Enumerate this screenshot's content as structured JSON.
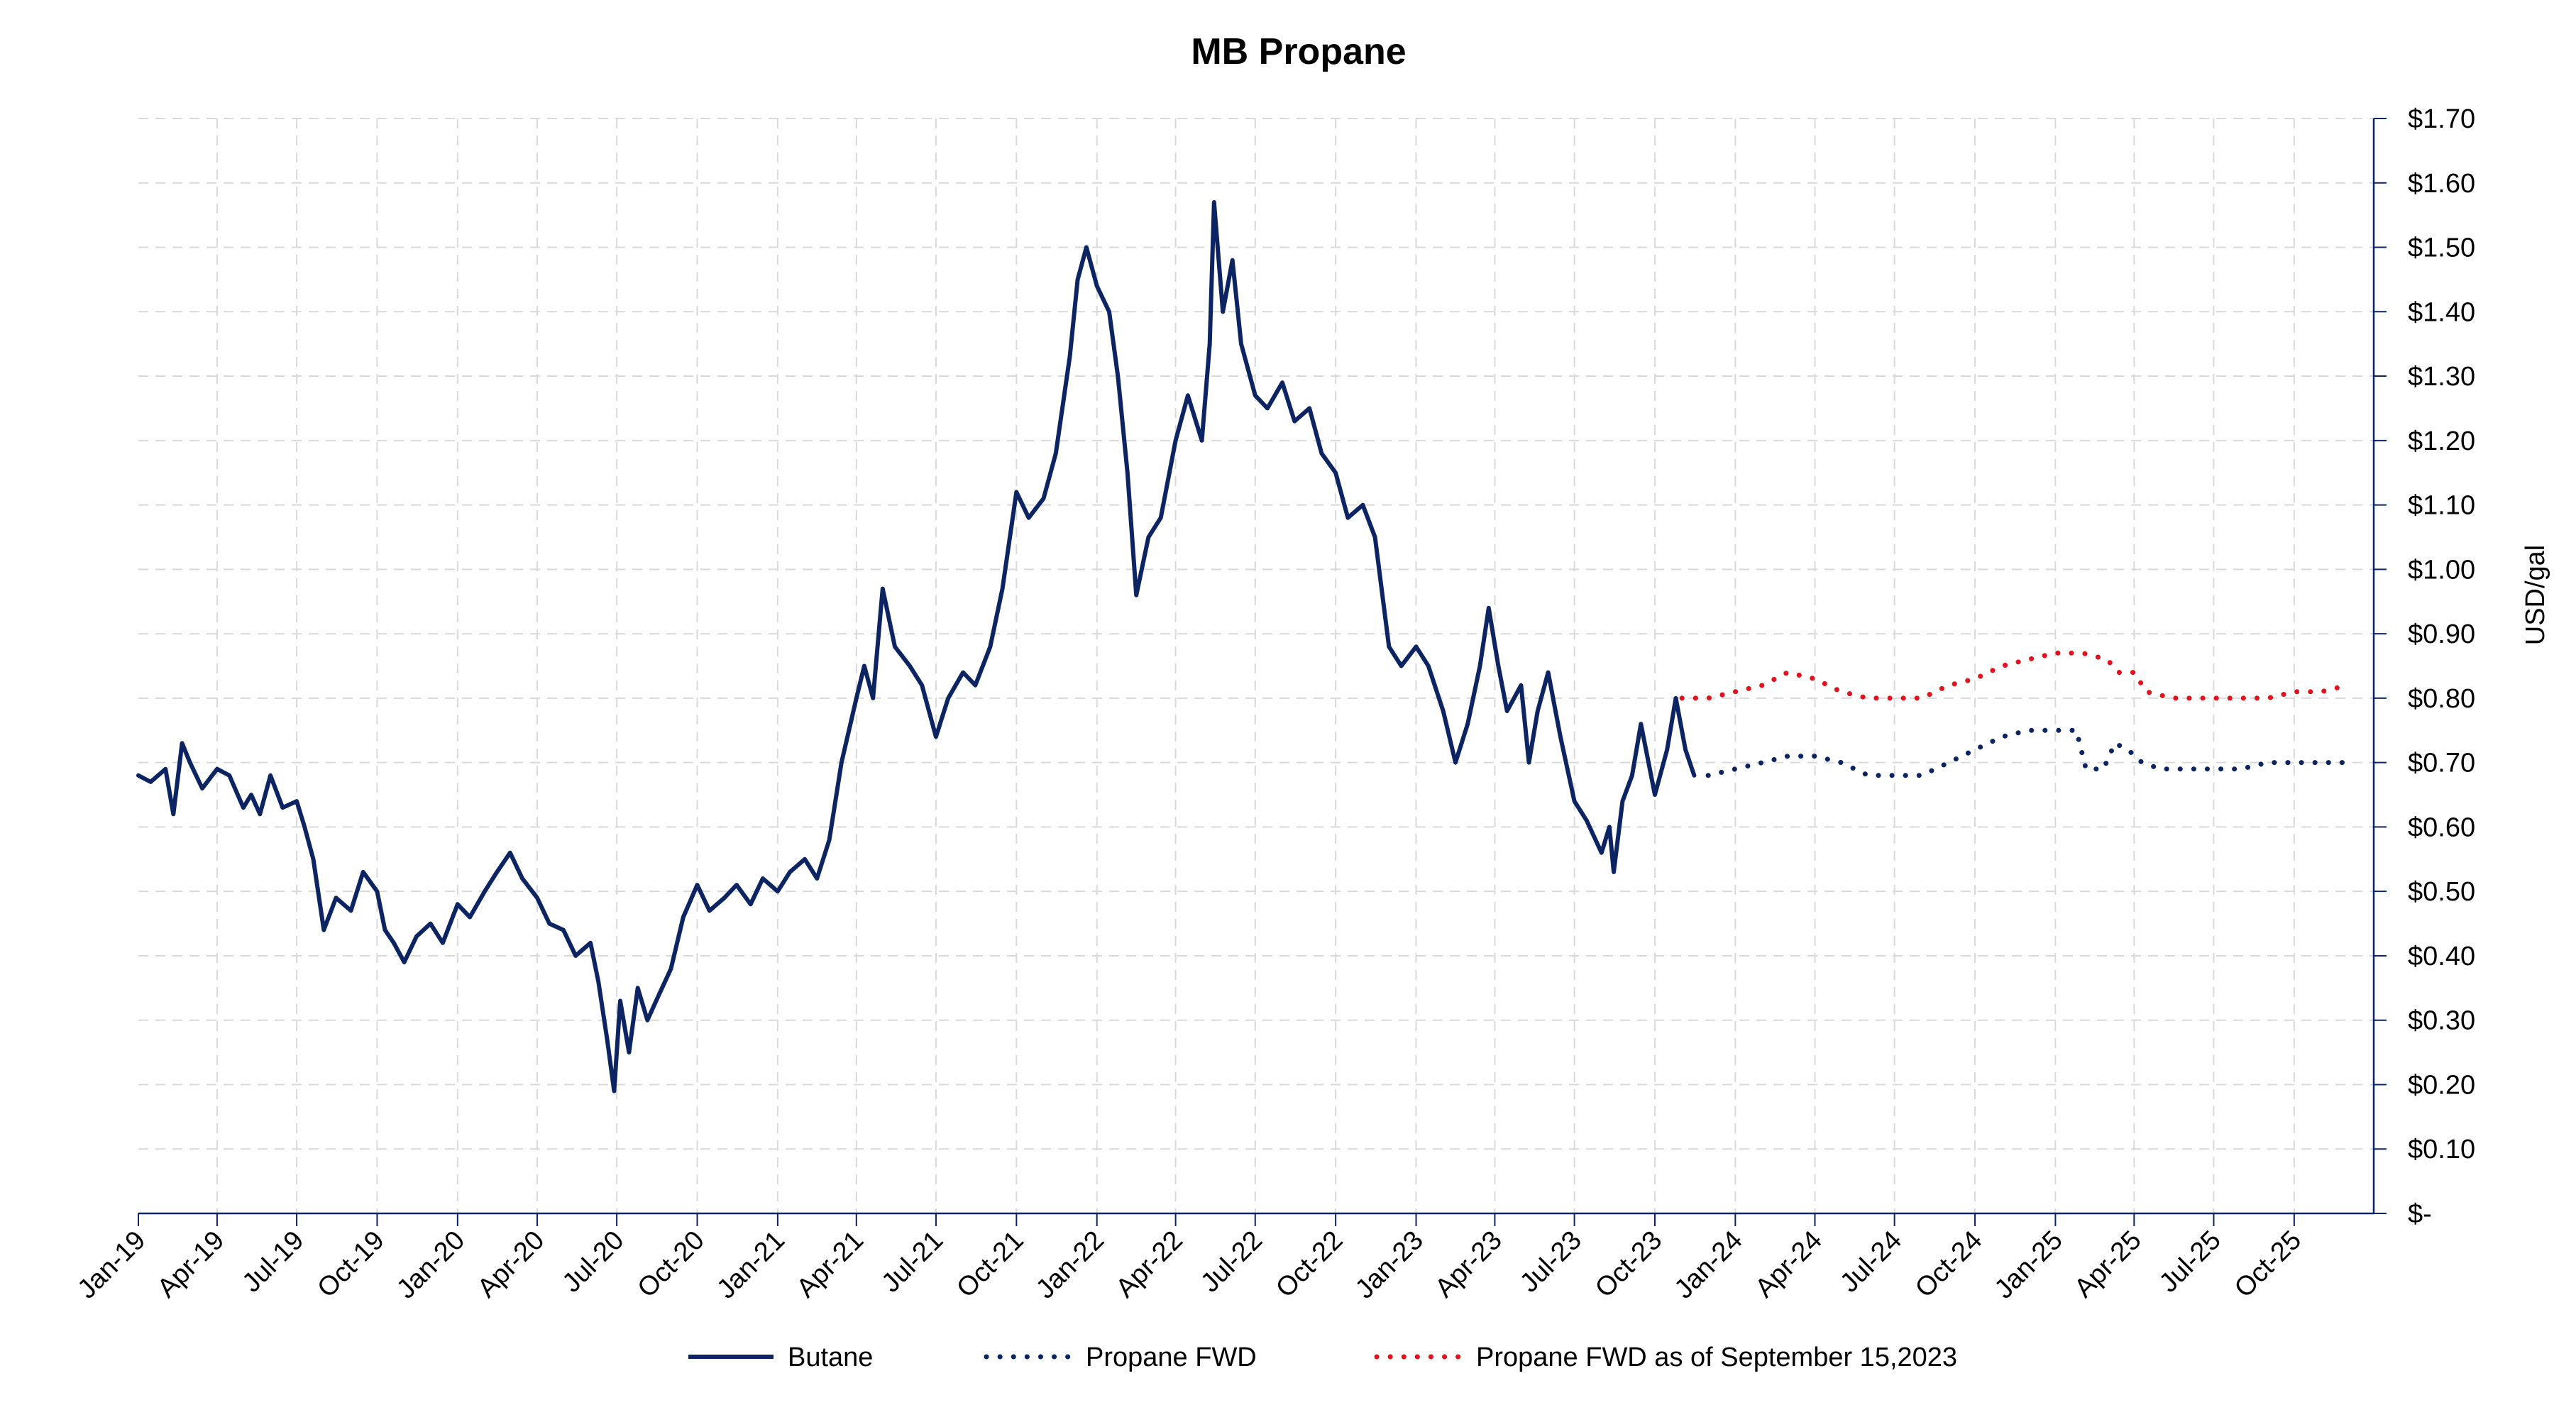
{
  "chart_data": {
    "type": "line",
    "title": "MB Propane",
    "xlabel": "",
    "ylabel": "USD/gal",
    "grid": true,
    "legend_position": "bottom",
    "x_range": [
      "2019-01-01",
      "2025-12-31"
    ],
    "ylim": [
      0,
      1.7
    ],
    "y_axis_side": "right",
    "x_tick_labels": [
      "Jan-19",
      "Apr-19",
      "Jul-19",
      "Oct-19",
      "Jan-20",
      "Apr-20",
      "Jul-20",
      "Oct-20",
      "Jan-21",
      "Apr-21",
      "Jul-21",
      "Oct-21",
      "Jan-22",
      "Apr-22",
      "Jul-22",
      "Oct-22",
      "Jan-23",
      "Apr-23",
      "Jul-23",
      "Oct-23",
      "Jan-24",
      "Apr-24",
      "Jul-24",
      "Oct-24",
      "Jan-25",
      "Apr-25",
      "Jul-25",
      "Oct-25"
    ],
    "x_tick_dates": [
      "2019-01-01",
      "2019-04-01",
      "2019-07-01",
      "2019-10-01",
      "2020-01-01",
      "2020-04-01",
      "2020-07-01",
      "2020-10-01",
      "2021-01-01",
      "2021-04-01",
      "2021-07-01",
      "2021-10-01",
      "2022-01-01",
      "2022-04-01",
      "2022-07-01",
      "2022-10-01",
      "2023-01-01",
      "2023-04-01",
      "2023-07-01",
      "2023-10-01",
      "2024-01-01",
      "2024-04-01",
      "2024-07-01",
      "2024-10-01",
      "2025-01-01",
      "2025-04-01",
      "2025-07-01",
      "2025-10-01"
    ],
    "y_tick_values": [
      0,
      0.1,
      0.2,
      0.3,
      0.4,
      0.5,
      0.6,
      0.7,
      0.8,
      0.9,
      1.0,
      1.1,
      1.2,
      1.3,
      1.4,
      1.5,
      1.6,
      1.7
    ],
    "y_tick_labels": [
      "$-",
      "$0.10",
      "$0.20",
      "$0.30",
      "$0.40",
      "$0.50",
      "$0.60",
      "$0.70",
      "$0.80",
      "$0.90",
      "$1.00",
      "$1.10",
      "$1.20",
      "$1.30",
      "$1.40",
      "$1.50",
      "$1.60",
      "$1.70"
    ],
    "series": [
      {
        "name": "Butane",
        "color": "#0d2463",
        "style": "solid",
        "points": [
          [
            "2019-01-01",
            0.68
          ],
          [
            "2019-01-15",
            0.67
          ],
          [
            "2019-02-01",
            0.69
          ],
          [
            "2019-02-10",
            0.62
          ],
          [
            "2019-02-20",
            0.73
          ],
          [
            "2019-03-01",
            0.7
          ],
          [
            "2019-03-15",
            0.66
          ],
          [
            "2019-04-01",
            0.69
          ],
          [
            "2019-04-15",
            0.68
          ],
          [
            "2019-05-01",
            0.63
          ],
          [
            "2019-05-10",
            0.65
          ],
          [
            "2019-05-20",
            0.62
          ],
          [
            "2019-06-01",
            0.68
          ],
          [
            "2019-06-15",
            0.63
          ],
          [
            "2019-07-01",
            0.64
          ],
          [
            "2019-07-10",
            0.6
          ],
          [
            "2019-07-20",
            0.55
          ],
          [
            "2019-08-01",
            0.44
          ],
          [
            "2019-08-15",
            0.49
          ],
          [
            "2019-09-01",
            0.47
          ],
          [
            "2019-09-15",
            0.53
          ],
          [
            "2019-10-01",
            0.5
          ],
          [
            "2019-10-10",
            0.44
          ],
          [
            "2019-10-20",
            0.42
          ],
          [
            "2019-11-01",
            0.39
          ],
          [
            "2019-11-15",
            0.43
          ],
          [
            "2019-12-01",
            0.45
          ],
          [
            "2019-12-15",
            0.42
          ],
          [
            "2020-01-01",
            0.48
          ],
          [
            "2020-01-15",
            0.46
          ],
          [
            "2020-02-01",
            0.5
          ],
          [
            "2020-02-15",
            0.53
          ],
          [
            "2020-03-01",
            0.56
          ],
          [
            "2020-03-15",
            0.52
          ],
          [
            "2020-04-01",
            0.49
          ],
          [
            "2020-04-15",
            0.45
          ],
          [
            "2020-05-01",
            0.44
          ],
          [
            "2020-05-15",
            0.4
          ],
          [
            "2020-06-01",
            0.42
          ],
          [
            "2020-06-10",
            0.36
          ],
          [
            "2020-06-20",
            0.27
          ],
          [
            "2020-06-28",
            0.19
          ],
          [
            "2020-07-05",
            0.33
          ],
          [
            "2020-07-15",
            0.25
          ],
          [
            "2020-07-25",
            0.35
          ],
          [
            "2020-08-05",
            0.3
          ],
          [
            "2020-08-15",
            0.33
          ],
          [
            "2020-09-01",
            0.38
          ],
          [
            "2020-09-15",
            0.46
          ],
          [
            "2020-10-01",
            0.51
          ],
          [
            "2020-10-15",
            0.47
          ],
          [
            "2020-11-01",
            0.49
          ],
          [
            "2020-11-15",
            0.51
          ],
          [
            "2020-12-01",
            0.48
          ],
          [
            "2020-12-15",
            0.52
          ],
          [
            "2021-01-01",
            0.5
          ],
          [
            "2021-01-15",
            0.53
          ],
          [
            "2021-02-01",
            0.55
          ],
          [
            "2021-02-15",
            0.52
          ],
          [
            "2021-03-01",
            0.58
          ],
          [
            "2021-03-15",
            0.7
          ],
          [
            "2021-04-01",
            0.8
          ],
          [
            "2021-04-10",
            0.85
          ],
          [
            "2021-04-20",
            0.8
          ],
          [
            "2021-05-01",
            0.97
          ],
          [
            "2021-05-15",
            0.88
          ],
          [
            "2021-06-01",
            0.85
          ],
          [
            "2021-06-15",
            0.82
          ],
          [
            "2021-07-01",
            0.74
          ],
          [
            "2021-07-15",
            0.8
          ],
          [
            "2021-08-01",
            0.84
          ],
          [
            "2021-08-15",
            0.82
          ],
          [
            "2021-09-01",
            0.88
          ],
          [
            "2021-09-15",
            0.97
          ],
          [
            "2021-10-01",
            1.12
          ],
          [
            "2021-10-15",
            1.08
          ],
          [
            "2021-11-01",
            1.11
          ],
          [
            "2021-11-15",
            1.18
          ],
          [
            "2021-12-01",
            1.33
          ],
          [
            "2021-12-10",
            1.45
          ],
          [
            "2021-12-20",
            1.5
          ],
          [
            "2022-01-01",
            1.44
          ],
          [
            "2022-01-15",
            1.4
          ],
          [
            "2022-01-25",
            1.3
          ],
          [
            "2022-02-05",
            1.15
          ],
          [
            "2022-02-15",
            0.96
          ],
          [
            "2022-03-01",
            1.05
          ],
          [
            "2022-03-15",
            1.08
          ],
          [
            "2022-04-01",
            1.2
          ],
          [
            "2022-04-15",
            1.27
          ],
          [
            "2022-05-01",
            1.2
          ],
          [
            "2022-05-10",
            1.35
          ],
          [
            "2022-05-15",
            1.57
          ],
          [
            "2022-05-25",
            1.4
          ],
          [
            "2022-06-05",
            1.48
          ],
          [
            "2022-06-15",
            1.35
          ],
          [
            "2022-07-01",
            1.27
          ],
          [
            "2022-07-15",
            1.25
          ],
          [
            "2022-08-01",
            1.29
          ],
          [
            "2022-08-15",
            1.23
          ],
          [
            "2022-09-01",
            1.25
          ],
          [
            "2022-09-15",
            1.18
          ],
          [
            "2022-10-01",
            1.15
          ],
          [
            "2022-10-15",
            1.08
          ],
          [
            "2022-11-01",
            1.1
          ],
          [
            "2022-11-15",
            1.05
          ],
          [
            "2022-12-01",
            0.88
          ],
          [
            "2022-12-15",
            0.85
          ],
          [
            "2023-01-01",
            0.88
          ],
          [
            "2023-01-15",
            0.85
          ],
          [
            "2023-02-01",
            0.78
          ],
          [
            "2023-02-15",
            0.7
          ],
          [
            "2023-03-01",
            0.76
          ],
          [
            "2023-03-15",
            0.85
          ],
          [
            "2023-03-25",
            0.94
          ],
          [
            "2023-04-05",
            0.85
          ],
          [
            "2023-04-15",
            0.78
          ],
          [
            "2023-05-01",
            0.82
          ],
          [
            "2023-05-10",
            0.7
          ],
          [
            "2023-05-20",
            0.78
          ],
          [
            "2023-06-01",
            0.84
          ],
          [
            "2023-06-15",
            0.74
          ],
          [
            "2023-07-01",
            0.64
          ],
          [
            "2023-07-15",
            0.61
          ],
          [
            "2023-08-01",
            0.56
          ],
          [
            "2023-08-10",
            0.6
          ],
          [
            "2023-08-15",
            0.53
          ],
          [
            "2023-08-25",
            0.64
          ],
          [
            "2023-09-05",
            0.68
          ],
          [
            "2023-09-15",
            0.76
          ],
          [
            "2023-10-01",
            0.65
          ],
          [
            "2023-10-15",
            0.72
          ],
          [
            "2023-10-25",
            0.8
          ],
          [
            "2023-11-05",
            0.72
          ],
          [
            "2023-11-15",
            0.68
          ]
        ]
      },
      {
        "name": "Propane FWD",
        "color": "#0d2463",
        "style": "dotted",
        "points": [
          [
            "2023-12-01",
            0.68
          ],
          [
            "2024-01-01",
            0.69
          ],
          [
            "2024-02-01",
            0.7
          ],
          [
            "2024-03-01",
            0.71
          ],
          [
            "2024-04-01",
            0.71
          ],
          [
            "2024-05-01",
            0.7
          ],
          [
            "2024-06-01",
            0.68
          ],
          [
            "2024-07-01",
            0.68
          ],
          [
            "2024-08-01",
            0.68
          ],
          [
            "2024-09-01",
            0.7
          ],
          [
            "2024-10-01",
            0.72
          ],
          [
            "2024-11-01",
            0.74
          ],
          [
            "2024-12-01",
            0.75
          ],
          [
            "2025-01-01",
            0.75
          ],
          [
            "2025-01-25",
            0.75
          ],
          [
            "2025-02-05",
            0.69
          ],
          [
            "2025-02-25",
            0.69
          ],
          [
            "2025-03-10",
            0.73
          ],
          [
            "2025-03-25",
            0.72
          ],
          [
            "2025-04-10",
            0.7
          ],
          [
            "2025-05-01",
            0.69
          ],
          [
            "2025-06-01",
            0.69
          ],
          [
            "2025-07-01",
            0.69
          ],
          [
            "2025-08-01",
            0.69
          ],
          [
            "2025-09-01",
            0.7
          ],
          [
            "2025-10-01",
            0.7
          ],
          [
            "2025-11-01",
            0.7
          ],
          [
            "2025-12-01",
            0.7
          ]
        ]
      },
      {
        "name": "Propane FWD as of September 15,2023",
        "color": "#e3111b",
        "style": "dotted",
        "points": [
          [
            "2023-11-01",
            0.8
          ],
          [
            "2023-12-01",
            0.8
          ],
          [
            "2024-01-01",
            0.81
          ],
          [
            "2024-02-01",
            0.82
          ],
          [
            "2024-03-01",
            0.84
          ],
          [
            "2024-04-01",
            0.83
          ],
          [
            "2024-05-01",
            0.81
          ],
          [
            "2024-06-01",
            0.8
          ],
          [
            "2024-07-01",
            0.8
          ],
          [
            "2024-08-01",
            0.8
          ],
          [
            "2024-09-01",
            0.82
          ],
          [
            "2024-10-01",
            0.83
          ],
          [
            "2024-11-01",
            0.85
          ],
          [
            "2024-12-01",
            0.86
          ],
          [
            "2025-01-01",
            0.87
          ],
          [
            "2025-02-01",
            0.87
          ],
          [
            "2025-03-01",
            0.86
          ],
          [
            "2025-03-15",
            0.84
          ],
          [
            "2025-04-01",
            0.84
          ],
          [
            "2025-04-15",
            0.81
          ],
          [
            "2025-05-15",
            0.8
          ],
          [
            "2025-07-01",
            0.8
          ],
          [
            "2025-08-01",
            0.8
          ],
          [
            "2025-09-01",
            0.8
          ],
          [
            "2025-10-01",
            0.81
          ],
          [
            "2025-11-01",
            0.81
          ],
          [
            "2025-12-01",
            0.82
          ]
        ]
      }
    ]
  }
}
